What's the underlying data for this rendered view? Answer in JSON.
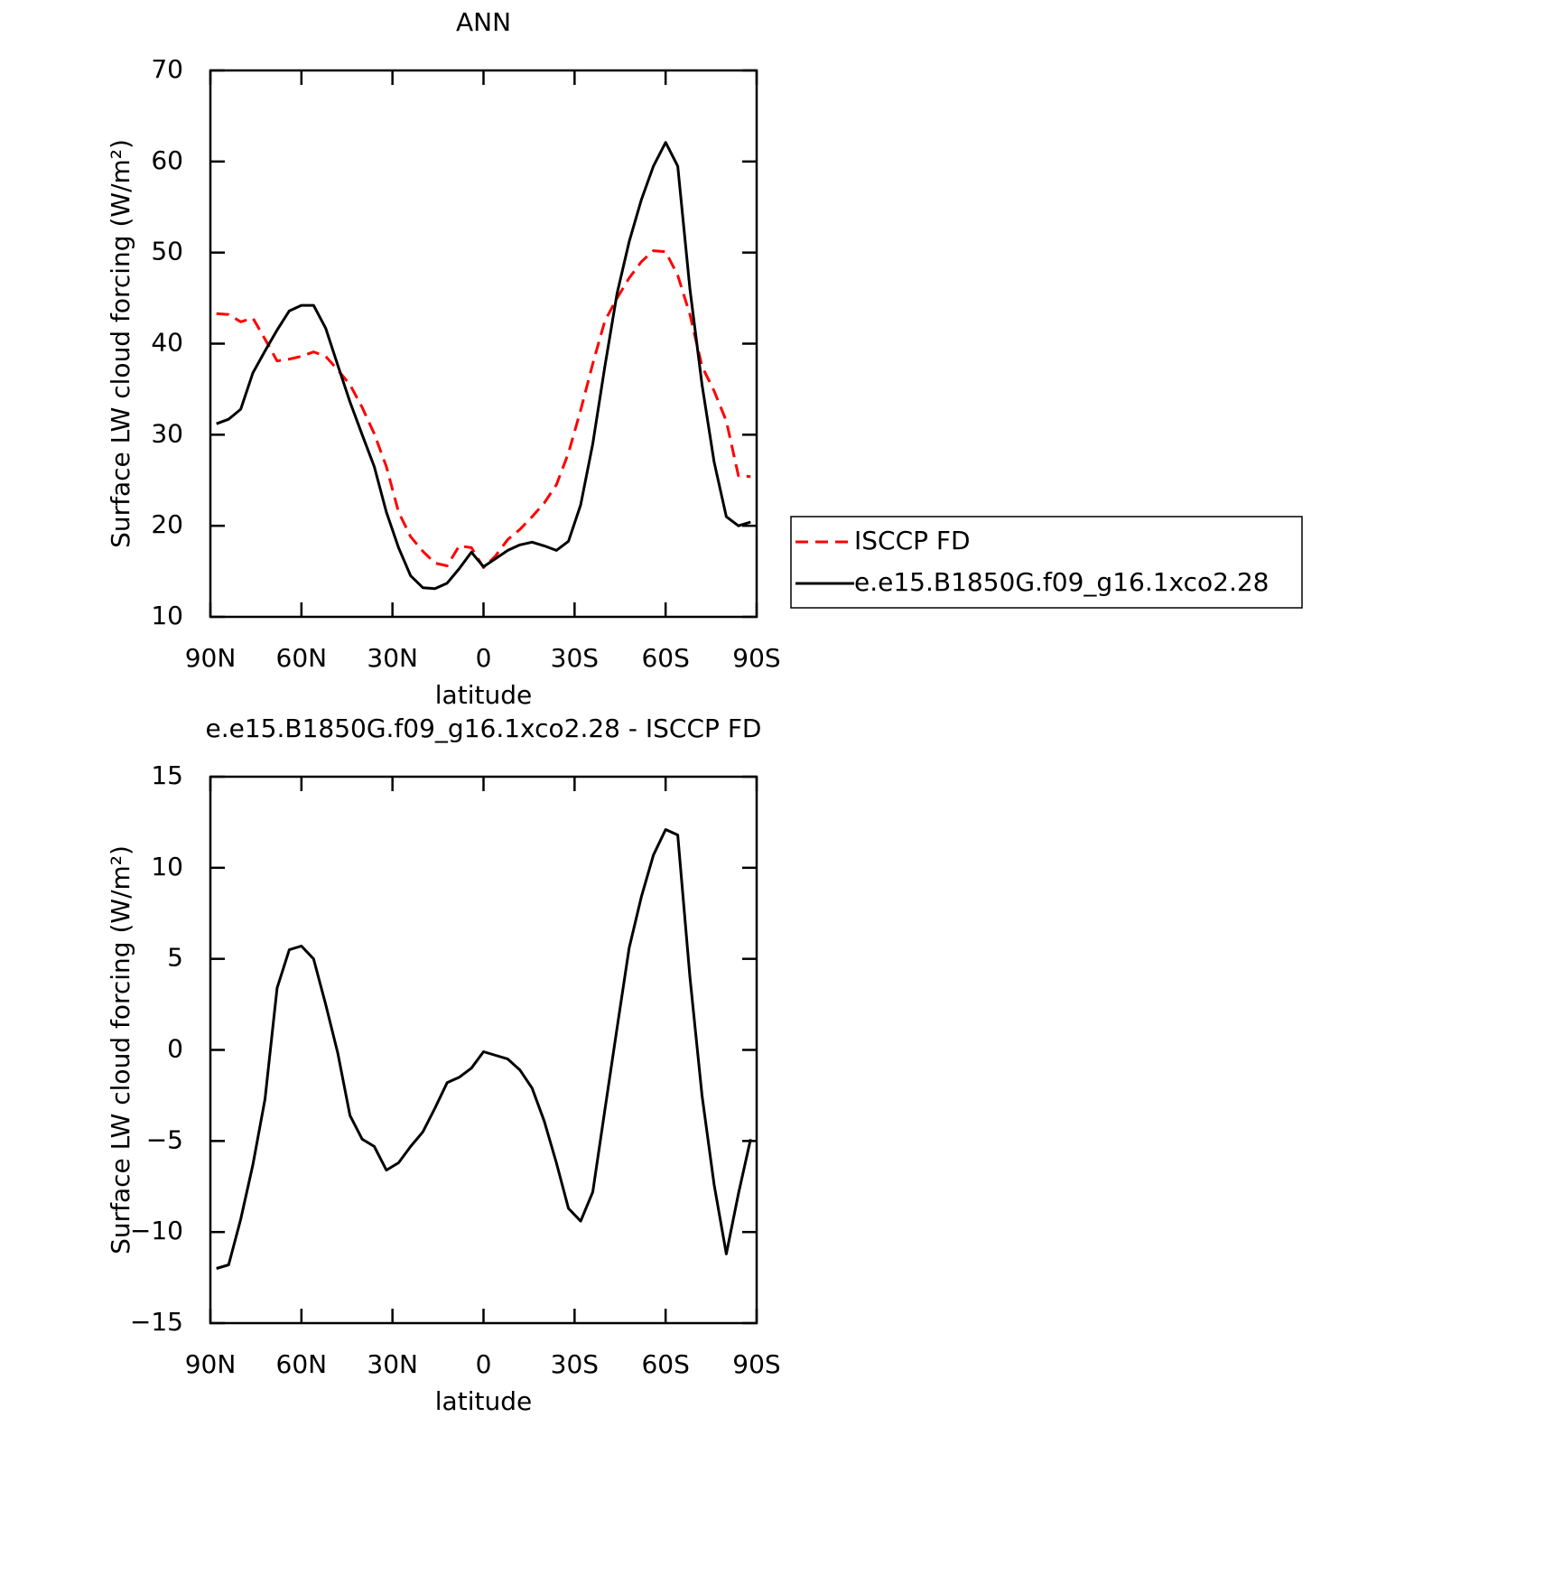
{
  "chart_data": [
    {
      "type": "line",
      "title": "ANN",
      "xlabel": "latitude",
      "ylabel": "Surface LW cloud forcing (W/m²)",
      "x": [
        88,
        84,
        80,
        76,
        72,
        68,
        64,
        60,
        56,
        52,
        48,
        44,
        40,
        36,
        32,
        28,
        24,
        20,
        16,
        12,
        8,
        4,
        0,
        -4,
        -8,
        -12,
        -16,
        -20,
        -24,
        -28,
        -32,
        -36,
        -40,
        -44,
        -48,
        -52,
        -56,
        -60,
        -64,
        -68,
        -72,
        -76,
        -80,
        -84,
        -88
      ],
      "xlim": [
        90,
        -90
      ],
      "xticks": [
        {
          "value": 90,
          "label": "90N"
        },
        {
          "value": 60,
          "label": "60N"
        },
        {
          "value": 30,
          "label": "30N"
        },
        0,
        {
          "value": -30,
          "label": "30S"
        },
        {
          "value": -60,
          "label": "60S"
        },
        {
          "value": -90,
          "label": "90S"
        }
      ],
      "ylim": [
        10,
        70
      ],
      "yticks": [
        10,
        20,
        30,
        40,
        50,
        60,
        70
      ],
      "legend": "right",
      "series": [
        {
          "name": "ISCCP FD",
          "color": "#ff0000",
          "linestyle": "dashed",
          "values": [
            43.3,
            43.2,
            42.4,
            42.8,
            40.5,
            38.1,
            38.3,
            38.6,
            39.1,
            38.6,
            37.1,
            35.5,
            33,
            30.1,
            26.5,
            21.5,
            18.8,
            17.2,
            15.9,
            15.6,
            17.8,
            17.6,
            15.4,
            16.7,
            18.5,
            19.6,
            21,
            22.5,
            24.5,
            28,
            32.7,
            37.8,
            42.5,
            45,
            47.2,
            49,
            50.2,
            50.1,
            47.5,
            43.2,
            37.5,
            34.8,
            31.5,
            25.5,
            25.4
          ]
        },
        {
          "name": "e.e15.B1850G.f09_g16.1xco2.28",
          "color": "#000000",
          "linestyle": "solid",
          "values": [
            31.2,
            31.7,
            32.8,
            36.8,
            39.2,
            41.5,
            43.6,
            44.2,
            44.2,
            41.7,
            37.6,
            33.6,
            30,
            26.5,
            21.5,
            17.6,
            14.5,
            13.2,
            13.1,
            13.7,
            15.3,
            17.1,
            15.5,
            16.4,
            17.3,
            17.9,
            18.2,
            17.8,
            17.3,
            18.3,
            22.3,
            29,
            37.5,
            45.5,
            51.2,
            55.8,
            59.5,
            62.1,
            59.5,
            46,
            35.5,
            27,
            21,
            20,
            20.4
          ]
        }
      ]
    },
    {
      "type": "line",
      "title": "e.e15.B1850G.f09_g16.1xco2.28 - ISCCP FD",
      "xlabel": "latitude",
      "ylabel": "Surface LW cloud forcing (W/m²)",
      "x": [
        88,
        84,
        80,
        76,
        72,
        68,
        64,
        60,
        56,
        52,
        48,
        44,
        40,
        36,
        32,
        28,
        24,
        20,
        16,
        12,
        8,
        4,
        0,
        -4,
        -8,
        -12,
        -16,
        -20,
        -24,
        -28,
        -32,
        -36,
        -40,
        -44,
        -48,
        -52,
        -56,
        -60,
        -64,
        -68,
        -72,
        -76,
        -80,
        -84,
        -88
      ],
      "xlim": [
        90,
        -90
      ],
      "xticks": [
        {
          "value": 90,
          "label": "90N"
        },
        {
          "value": 60,
          "label": "60N"
        },
        {
          "value": 30,
          "label": "30N"
        },
        0,
        {
          "value": -30,
          "label": "30S"
        },
        {
          "value": -60,
          "label": "60S"
        },
        {
          "value": -90,
          "label": "90S"
        }
      ],
      "ylim": [
        -15,
        15
      ],
      "yticks": [
        {
          "value": -15,
          "label": "−15"
        },
        {
          "value": -10,
          "label": "−10"
        },
        {
          "value": -5,
          "label": "−5"
        },
        0,
        5,
        10,
        15
      ],
      "series": [
        {
          "color": "#000000",
          "linestyle": "solid",
          "values": [
            -12,
            -11.8,
            -9.3,
            -6.3,
            -2.7,
            3.4,
            5.5,
            5.7,
            5,
            2.5,
            -0.2,
            -3.6,
            -4.9,
            -5.3,
            -6.6,
            -6.2,
            -5.3,
            -4.5,
            -3.2,
            -1.8,
            -1.5,
            -1,
            -0.1,
            -0.3,
            -0.5,
            -1.1,
            -2.1,
            -3.9,
            -6.2,
            -8.7,
            -9.4,
            -7.8,
            -3.3,
            1.2,
            5.6,
            8.4,
            10.7,
            12.1,
            11.8,
            4,
            -2.5,
            -7.4,
            -11.2,
            -7.9,
            -4.9
          ]
        }
      ]
    }
  ]
}
